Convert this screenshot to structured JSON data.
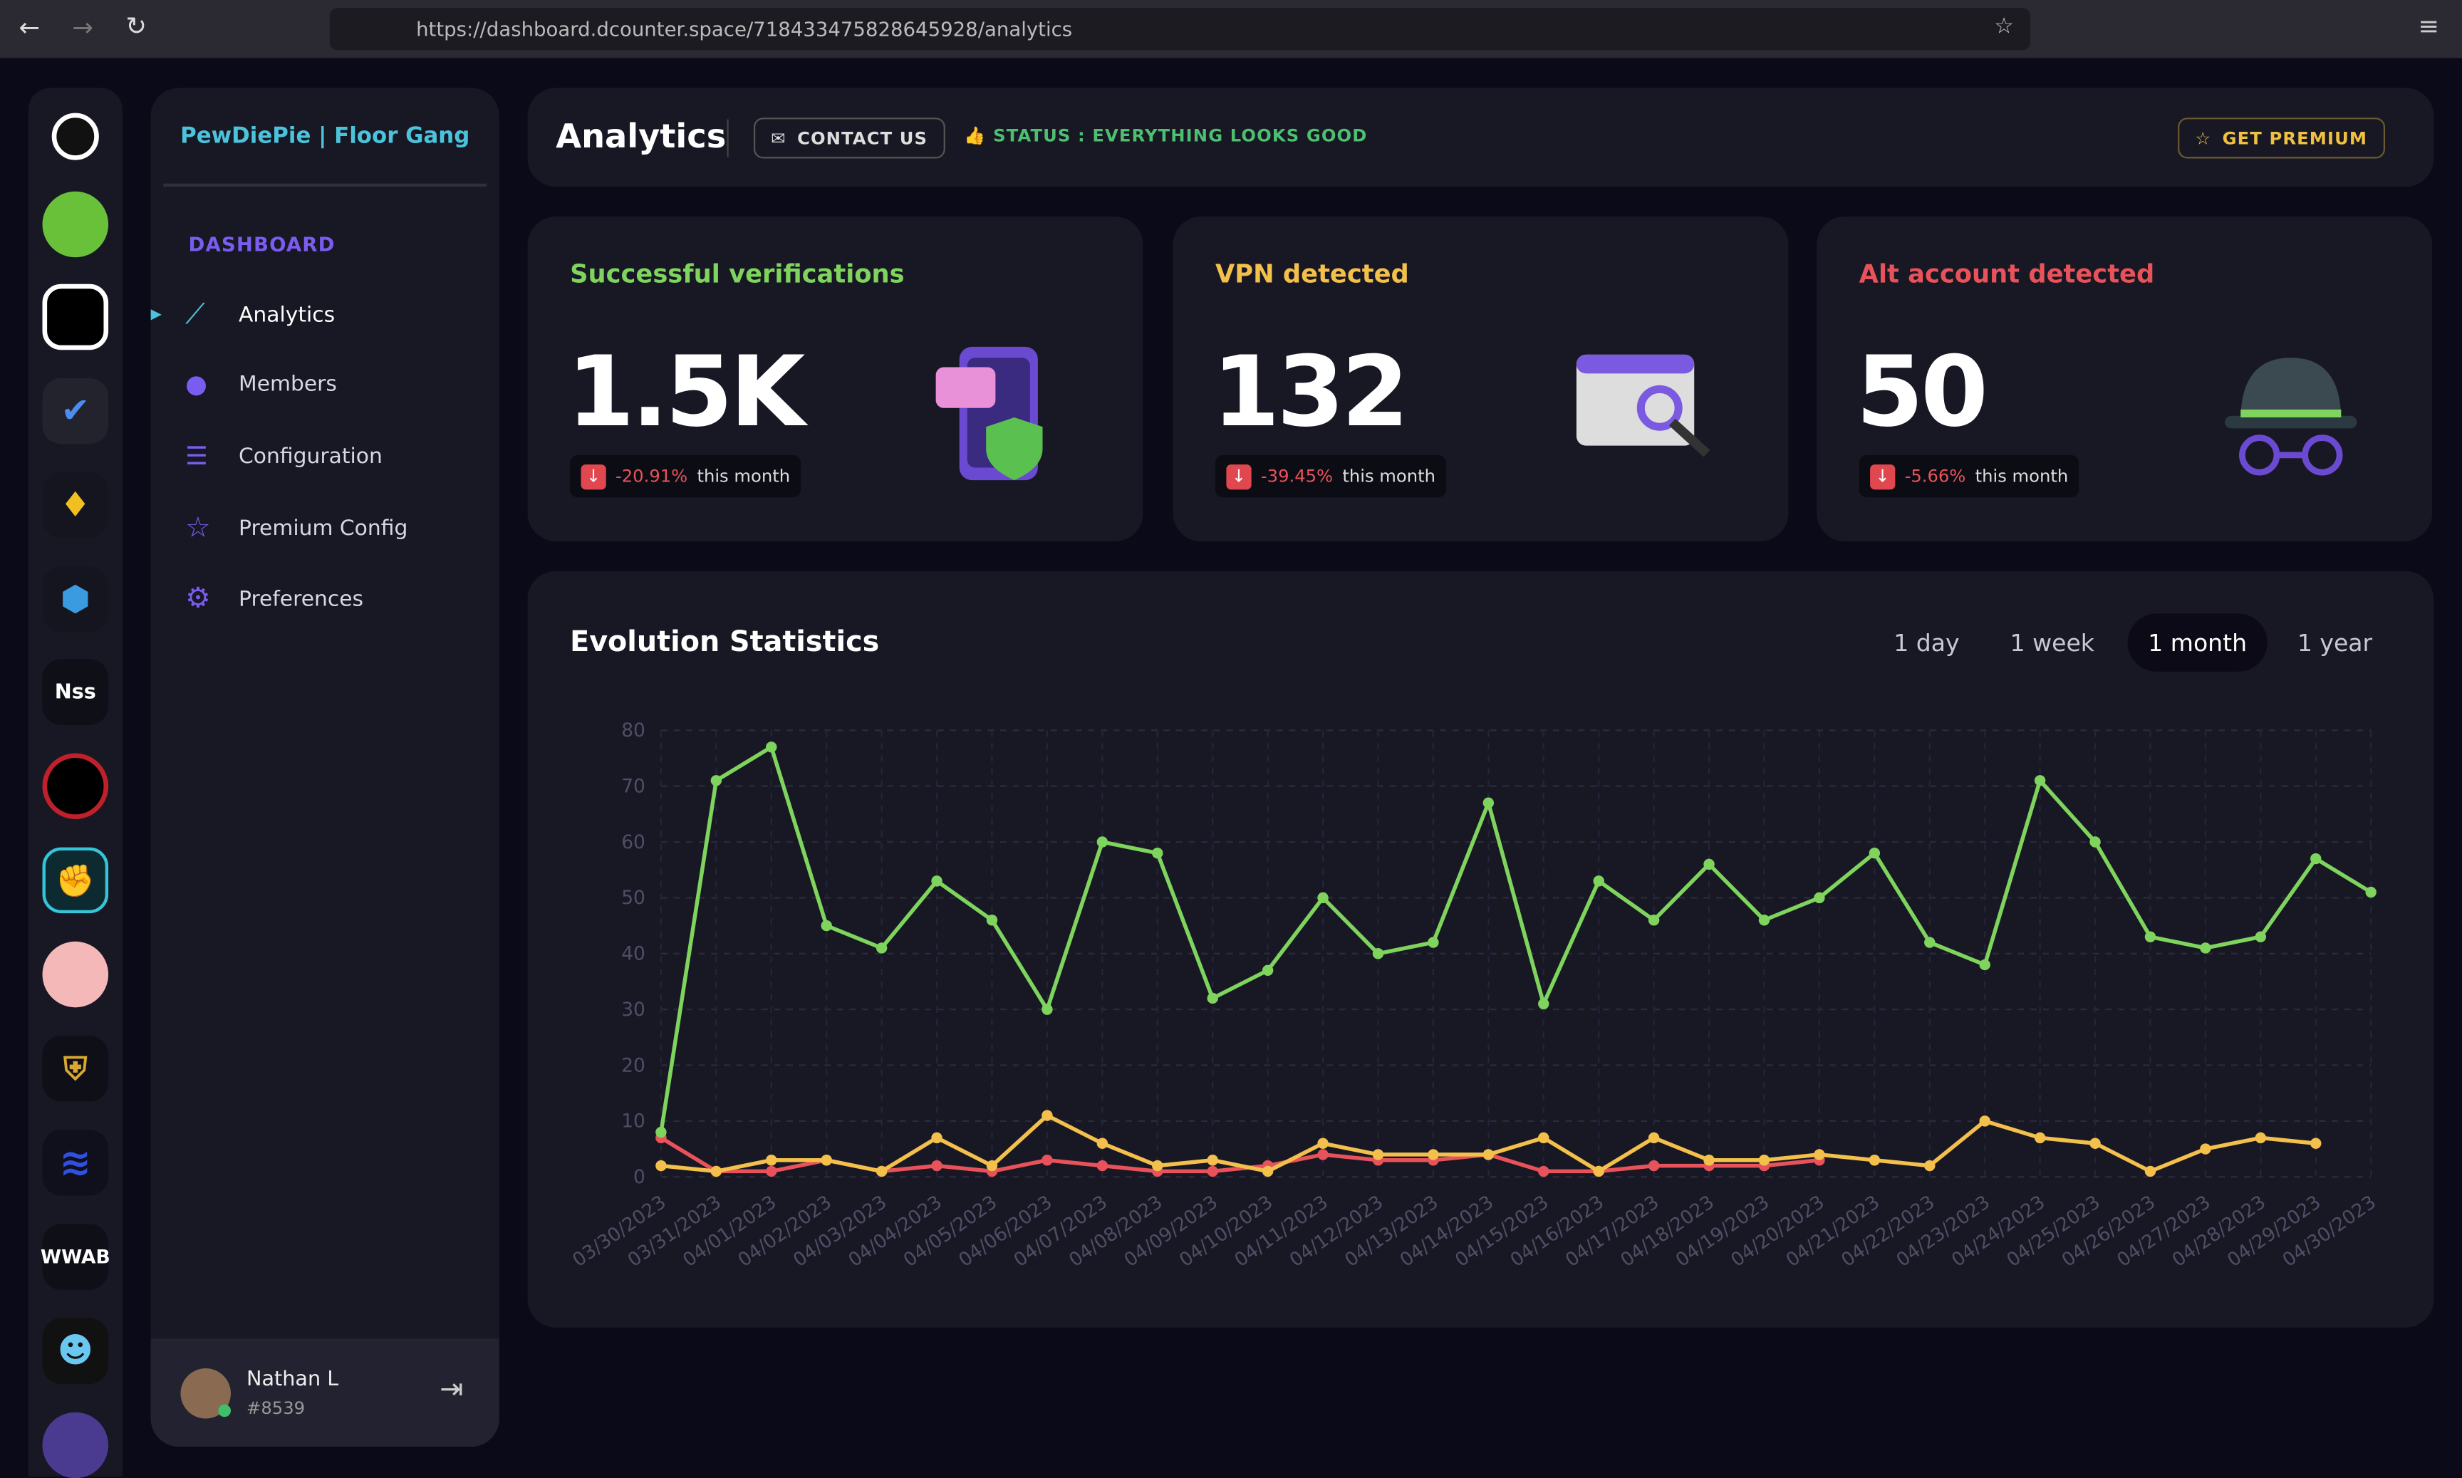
{
  "browser": {
    "url": "https://dashboard.dcounter.space/718433475828645928/analytics"
  },
  "servers": {
    "labels": [
      "Nss",
      "WWAB"
    ]
  },
  "sidebar": {
    "server_name": "PewDiePie | Floor Gang",
    "section": "DASHBOARD",
    "items": [
      "Analytics",
      "Members",
      "Configuration",
      "Premium Config",
      "Preferences"
    ],
    "user": {
      "name": "Nathan L",
      "tag": "#8539"
    }
  },
  "header": {
    "title": "Analytics",
    "contact": "CONTACT US",
    "status": "STATUS : EVERYTHING LOOKS GOOD",
    "premium": "GET PREMIUM"
  },
  "cards": [
    {
      "title": "Successful verifications",
      "value": "1.5K",
      "change": "-20.91%",
      "period": "this month"
    },
    {
      "title": "VPN detected",
      "value": "132",
      "change": "-39.45%",
      "period": "this month"
    },
    {
      "title": "Alt account detected",
      "value": "50",
      "change": "-5.66%",
      "period": "this month"
    }
  ],
  "ranges": [
    "1 day",
    "1 week",
    "1 month",
    "1 year"
  ],
  "chart_data": {
    "type": "line",
    "title": "Evolution Statistics",
    "categories": [
      "03/30/2023",
      "03/31/2023",
      "04/01/2023",
      "04/02/2023",
      "04/03/2023",
      "04/04/2023",
      "04/05/2023",
      "04/06/2023",
      "04/07/2023",
      "04/08/2023",
      "04/09/2023",
      "04/10/2023",
      "04/11/2023",
      "04/12/2023",
      "04/13/2023",
      "04/14/2023",
      "04/15/2023",
      "04/16/2023",
      "04/17/2023",
      "04/18/2023",
      "04/19/2023",
      "04/20/2023",
      "04/21/2023",
      "04/22/2023",
      "04/23/2023",
      "04/24/2023",
      "04/25/2023",
      "04/26/2023",
      "04/27/2023",
      "04/28/2023",
      "04/29/2023",
      "04/30/2023"
    ],
    "series": [
      {
        "color": "#7ed45c",
        "values": [
          8,
          71,
          77,
          45,
          41,
          53,
          46,
          30,
          60,
          58,
          32,
          37,
          50,
          40,
          42,
          67,
          31,
          53,
          46,
          56,
          46,
          50,
          58,
          42,
          38,
          71,
          60,
          43,
          41,
          43,
          57,
          51
        ]
      },
      {
        "color": "#f4c04c",
        "values": [
          2,
          1,
          3,
          3,
          1,
          7,
          2,
          11,
          6,
          2,
          3,
          1,
          6,
          4,
          4,
          4,
          7,
          1,
          7,
          3,
          3,
          4,
          3,
          2,
          10,
          7,
          6,
          1,
          5,
          7,
          6,
          null
        ]
      },
      {
        "color": "#e8525a",
        "values": [
          7,
          1,
          1,
          3,
          1,
          2,
          1,
          3,
          2,
          1,
          1,
          2,
          4,
          3,
          3,
          4,
          1,
          1,
          2,
          2,
          2,
          3,
          null,
          null,
          null,
          null,
          null,
          null,
          null,
          null,
          null,
          null
        ]
      }
    ],
    "ylim": [
      0,
      80
    ],
    "yticks": [
      0,
      10,
      20,
      30,
      40,
      50,
      60,
      70,
      80
    ],
    "grid": true
  }
}
